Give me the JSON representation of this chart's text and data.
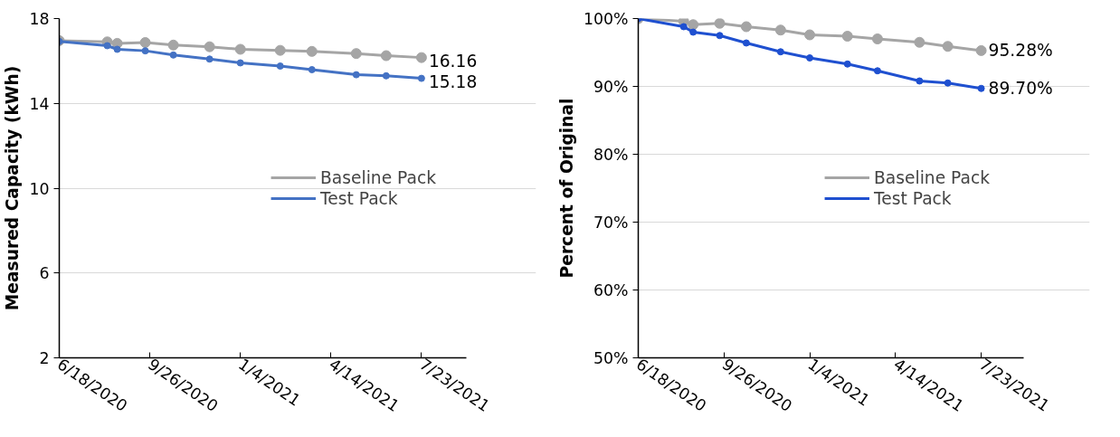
{
  "chart_data": [
    {
      "type": "line",
      "ylabel": "Measured Capacity (kWh)",
      "x": [
        "2020-06-18",
        "2020-08-10",
        "2020-08-21",
        "2020-09-21",
        "2020-10-22",
        "2020-12-01",
        "2021-01-04",
        "2021-02-17",
        "2021-03-24",
        "2021-05-12",
        "2021-06-14",
        "2021-07-23"
      ],
      "xlim": [
        "2020-06-18",
        "2021-09-11"
      ],
      "xticks": [
        {
          "value": "2020-06-18",
          "label": "6/18/2020"
        },
        {
          "value": "2020-09-26",
          "label": "9/26/2020"
        },
        {
          "value": "2021-01-04",
          "label": "1/4/2021"
        },
        {
          "value": "2021-04-14",
          "label": "4/14/2021"
        },
        {
          "value": "2021-07-23",
          "label": "7/23/2021"
        }
      ],
      "ylim": [
        2,
        18
      ],
      "yticks": [
        2,
        6,
        10,
        14,
        18
      ],
      "grid": "y",
      "legend": "right",
      "marker": "circle",
      "series": [
        {
          "name": "Baseline Pack",
          "color": "#a5a5a5",
          "values": [
            16.96,
            16.9,
            16.83,
            16.87,
            16.75,
            16.67,
            16.55,
            16.5,
            16.45,
            16.35,
            16.25,
            16.16
          ],
          "value_labels": [
            null,
            null,
            null,
            null,
            null,
            null,
            null,
            null,
            null,
            null,
            null,
            "16.16"
          ]
        },
        {
          "name": "Test Pack",
          "color": "#4472c4",
          "values": [
            16.92,
            16.72,
            16.55,
            16.48,
            16.28,
            16.09,
            15.91,
            15.76,
            15.59,
            15.35,
            15.3,
            15.18
          ],
          "value_labels": [
            null,
            null,
            null,
            null,
            null,
            null,
            null,
            null,
            null,
            null,
            null,
            "15.18"
          ]
        }
      ]
    },
    {
      "type": "line",
      "ylabel": "Percent of Original",
      "x": [
        "2020-06-18",
        "2020-08-10",
        "2020-08-21",
        "2020-09-21",
        "2020-10-22",
        "2020-12-01",
        "2021-01-04",
        "2021-02-17",
        "2021-03-24",
        "2021-05-12",
        "2021-06-14",
        "2021-07-23"
      ],
      "xlim": [
        "2020-06-18",
        "2021-09-11"
      ],
      "xticks": [
        {
          "value": "2020-06-18",
          "label": "6/18/2020"
        },
        {
          "value": "2020-09-26",
          "label": "9/26/2020"
        },
        {
          "value": "2021-01-04",
          "label": "1/4/2021"
        },
        {
          "value": "2021-04-14",
          "label": "4/14/2021"
        },
        {
          "value": "2021-07-23",
          "label": "7/23/2021"
        }
      ],
      "ylim": [
        50,
        100
      ],
      "yticks": [
        {
          "value": 50,
          "label": "50%"
        },
        {
          "value": 60,
          "label": "60%"
        },
        {
          "value": 70,
          "label": "70%"
        },
        {
          "value": 80,
          "label": "80%"
        },
        {
          "value": 90,
          "label": "90%"
        },
        {
          "value": 100,
          "label": "100%"
        }
      ],
      "grid": "y",
      "legend": "right",
      "marker": "circle",
      "series": [
        {
          "name": "Baseline Pack",
          "color": "#a5a5a5",
          "values": [
            100,
            99.6,
            99.1,
            99.3,
            98.8,
            98.3,
            97.6,
            97.4,
            97.0,
            96.5,
            95.9,
            95.28
          ],
          "value_labels": [
            null,
            null,
            null,
            null,
            null,
            null,
            null,
            null,
            null,
            null,
            null,
            "95.28%"
          ]
        },
        {
          "name": "Test Pack",
          "color": "#1f50d0",
          "values": [
            100,
            98.8,
            98.0,
            97.5,
            96.4,
            95.1,
            94.2,
            93.3,
            92.3,
            90.8,
            90.5,
            89.7
          ],
          "value_labels": [
            null,
            null,
            null,
            null,
            null,
            null,
            null,
            null,
            null,
            null,
            null,
            "89.70%"
          ]
        }
      ]
    }
  ]
}
